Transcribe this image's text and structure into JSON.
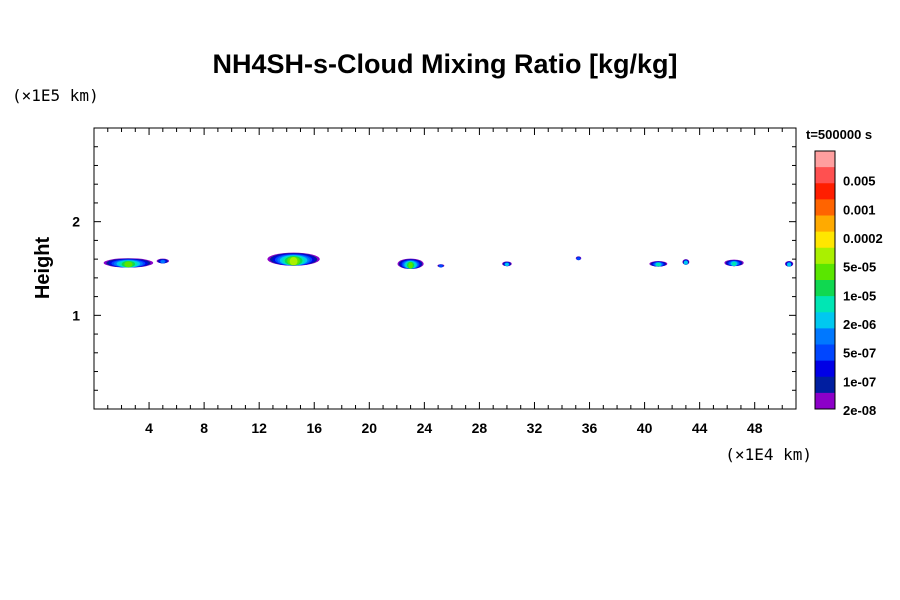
{
  "chart_data": {
    "type": "heatmap",
    "title": "NH4SH-s-Cloud Mixing Ratio [kg/kg]",
    "x_unit": "(×1E4 km)",
    "y_unit": "(×1E5 km)",
    "ylabel": "Height",
    "xlim": [
      0,
      51
    ],
    "ylim": [
      0,
      3
    ],
    "x_ticks": [
      4,
      8,
      12,
      16,
      20,
      24,
      28,
      32,
      36,
      40,
      44,
      48
    ],
    "y_ticks": [
      1,
      2
    ],
    "time_label": "t=500000 s",
    "colorbar": {
      "colors": [
        "#ff9f9f",
        "#ff5050",
        "#ff1e00",
        "#ff6400",
        "#ffaa00",
        "#ffe600",
        "#aaf000",
        "#5ae600",
        "#10d850",
        "#00e6b4",
        "#00c8f0",
        "#0078ff",
        "#0046ff",
        "#0000e6",
        "#001ea0",
        "#8c00c8"
      ],
      "labels": [
        {
          "text": "0.005",
          "level": 1
        },
        {
          "text": "0.001",
          "level": 2
        },
        {
          "text": "0.0002",
          "level": 3
        },
        {
          "text": "5e-05",
          "level": 4
        },
        {
          "text": "1e-05",
          "level": 5
        },
        {
          "text": "2e-06",
          "level": 6
        },
        {
          "text": "5e-07",
          "level": 7
        },
        {
          "text": "1e-07",
          "level": 8
        },
        {
          "text": "2e-08",
          "level": 9
        }
      ]
    },
    "clouds": [
      {
        "xc": 2.5,
        "yc": 1.56,
        "w": 3.6,
        "h": 0.1,
        "peak": 0.82
      },
      {
        "xc": 5.0,
        "yc": 1.58,
        "w": 0.9,
        "h": 0.05,
        "peak": 0.45
      },
      {
        "xc": 14.5,
        "yc": 1.6,
        "w": 3.8,
        "h": 0.14,
        "peak": 0.95
      },
      {
        "xc": 23.0,
        "yc": 1.55,
        "w": 1.9,
        "h": 0.11,
        "peak": 0.85
      },
      {
        "xc": 25.2,
        "yc": 1.53,
        "w": 0.5,
        "h": 0.03,
        "peak": 0.35
      },
      {
        "xc": 30.0,
        "yc": 1.55,
        "w": 0.7,
        "h": 0.05,
        "peak": 0.55
      },
      {
        "xc": 35.2,
        "yc": 1.61,
        "w": 0.4,
        "h": 0.04,
        "peak": 0.4
      },
      {
        "xc": 41.0,
        "yc": 1.55,
        "w": 1.3,
        "h": 0.06,
        "peak": 0.6
      },
      {
        "xc": 43.0,
        "yc": 1.57,
        "w": 0.5,
        "h": 0.06,
        "peak": 0.55
      },
      {
        "xc": 46.5,
        "yc": 1.56,
        "w": 1.4,
        "h": 0.07,
        "peak": 0.62
      },
      {
        "xc": 50.5,
        "yc": 1.55,
        "w": 0.6,
        "h": 0.06,
        "peak": 0.55
      }
    ]
  }
}
